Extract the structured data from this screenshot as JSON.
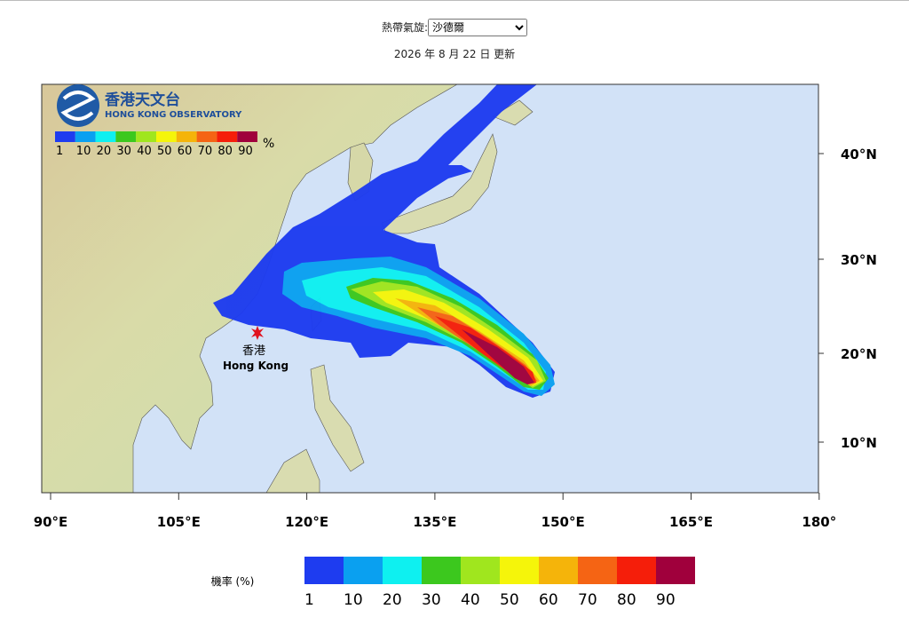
{
  "header": {
    "label": "熱帶氣旋:",
    "selected": "沙德爾",
    "updated": "2026 年 8 月 22 日 更新"
  },
  "map": {
    "logo_zh": "香港天文台",
    "logo_en": "HONG KONG OBSERVATORY",
    "unit": "%",
    "city_zh": "香港",
    "city_en": "Hong Kong",
    "lat_labels": [
      "40°N",
      "30°N",
      "20°N",
      "10°N"
    ],
    "lon_labels": [
      "90°E",
      "105°E",
      "120°E",
      "135°E",
      "150°E",
      "165°E",
      "180°"
    ]
  },
  "legend": {
    "title": "機率 (%)",
    "levels": [
      "1",
      "10",
      "20",
      "30",
      "40",
      "50",
      "60",
      "70",
      "80",
      "90"
    ],
    "colors": [
      "#1e3cf0",
      "#0aa0f0",
      "#0ef0f0",
      "#3cc81e",
      "#a0e61e",
      "#f5f50a",
      "#f5b40a",
      "#f56414",
      "#f51e0a",
      "#a0003c"
    ]
  }
}
